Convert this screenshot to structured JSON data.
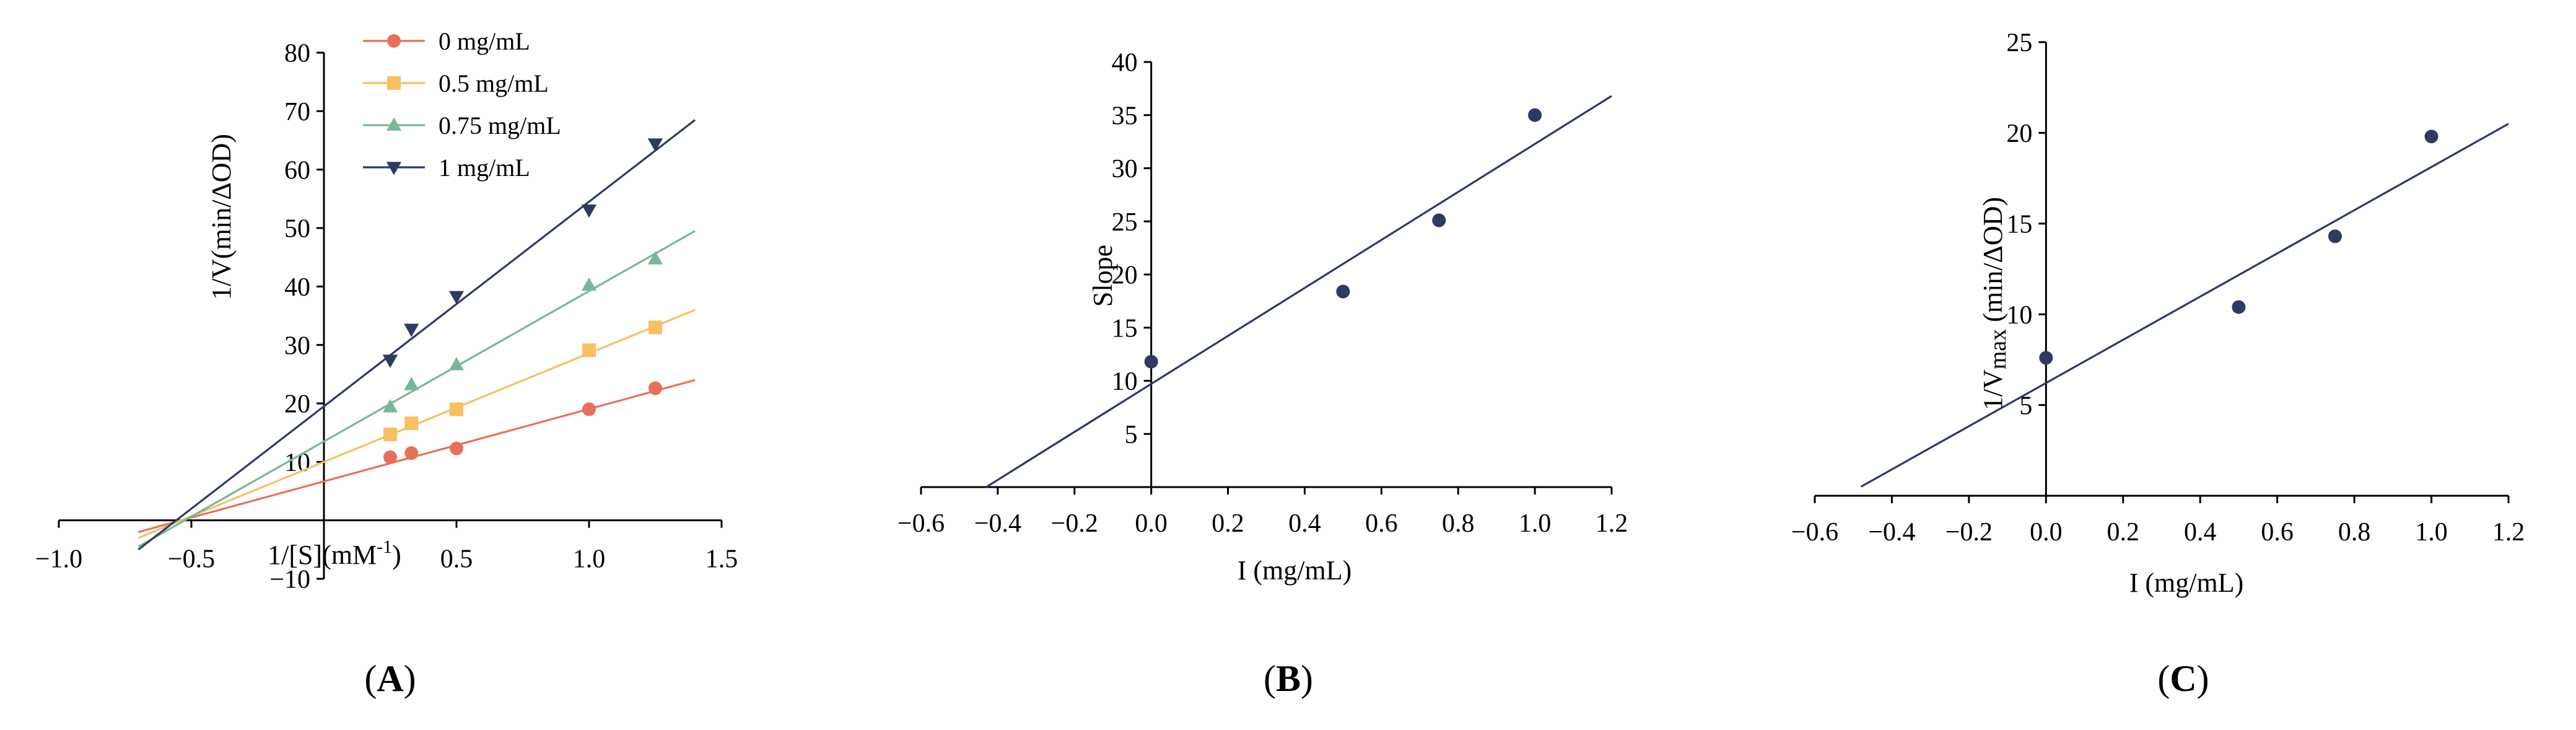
{
  "charts": [
    {
      "panel_label_pre": "(",
      "panel_letter": "A",
      "panel_label_post": ")",
      "chart_data": {
        "type": "line",
        "title": "",
        "xlabel_base": "1/[S](mM",
        "xlabel_sup": "-1",
        "xlabel_end": ")",
        "ylabel": "1/V(min/ΔOD)",
        "xlim": [
          -1.0,
          1.5
        ],
        "ylim": [
          -10,
          80
        ],
        "xticks": [
          -1.0,
          -0.5,
          0.5,
          1.0,
          1.5
        ],
        "xtick_labels": [
          "−1.0",
          "−0.5",
          "0.5",
          "1.0",
          "1.5"
        ],
        "yticks": [
          -10,
          10,
          20,
          30,
          40,
          50,
          60,
          70,
          80
        ],
        "ytick_labels": [
          "−10",
          "10",
          "20",
          "30",
          "40",
          "50",
          "60",
          "70",
          "80"
        ],
        "grid": false,
        "legend_position": "top-center",
        "series": [
          {
            "name": "0 mg/mL",
            "color": "#E8705A",
            "marker": "circle",
            "x": [
              0.25,
              0.33,
              0.5,
              1.0,
              1.25
            ],
            "y": [
              10.8,
              11.5,
              12.3,
              19.0,
              22.6
            ],
            "fit": {
              "x1": -0.7,
              "y1": -2.0,
              "x2": 1.4,
              "y2": 24.0
            }
          },
          {
            "name": "0.5 mg/mL",
            "color": "#F6C063",
            "marker": "square",
            "x": [
              0.25,
              0.33,
              0.5,
              1.0,
              1.25
            ],
            "y": [
              14.7,
              16.6,
              19.0,
              29.1,
              33.0
            ],
            "fit": {
              "x1": -0.7,
              "y1": -3.0,
              "x2": 1.4,
              "y2": 36.0
            }
          },
          {
            "name": "0.75 mg/mL",
            "color": "#76B89A",
            "marker": "triangle-up",
            "x": [
              0.25,
              0.33,
              0.5,
              1.0,
              1.25
            ],
            "y": [
              19.4,
              23.2,
              26.6,
              40.2,
              44.7
            ],
            "fit": {
              "x1": -0.7,
              "y1": -4.5,
              "x2": 1.4,
              "y2": 49.5
            }
          },
          {
            "name": "1 mg/mL",
            "color": "#2F3A62",
            "marker": "triangle-down",
            "x": [
              0.25,
              0.33,
              0.5,
              1.0,
              1.25
            ],
            "y": [
              27.4,
              32.7,
              38.3,
              53.1,
              64.4
            ],
            "fit": {
              "x1": -0.7,
              "y1": -5.0,
              "x2": 1.4,
              "y2": 68.5
            }
          }
        ]
      }
    },
    {
      "panel_label_pre": "(",
      "panel_letter": "B",
      "panel_label_post": ")",
      "chart_data": {
        "type": "scatter",
        "title": "",
        "xlabel": "I (mg/mL)",
        "ylabel": "Slope",
        "xlim": [
          -0.6,
          1.2
        ],
        "ylim": [
          0,
          40
        ],
        "xticks": [
          -0.6,
          -0.4,
          -0.2,
          0.0,
          0.2,
          0.4,
          0.6,
          0.8,
          1.0,
          1.2
        ],
        "xtick_labels": [
          "−0.6",
          "−0.4",
          "−0.2",
          "0.0",
          "0.2",
          "0.4",
          "0.6",
          "0.8",
          "1.0",
          "1.2"
        ],
        "yticks": [
          5,
          10,
          15,
          20,
          25,
          30,
          35,
          40
        ],
        "ytick_labels": [
          "5",
          "10",
          "15",
          "20",
          "25",
          "30",
          "35",
          "40"
        ],
        "grid": false,
        "series": [
          {
            "color": "#2F3A62",
            "marker": "circle",
            "x": [
              0.0,
              0.5,
              0.75,
              1.0
            ],
            "y": [
              11.8,
              18.4,
              25.1,
              35.0
            ],
            "fit": {
              "x1": -0.43,
              "y1": 0.0,
              "x2": 1.2,
              "y2": 36.8
            }
          }
        ]
      }
    },
    {
      "panel_label_pre": "(",
      "panel_letter": "C",
      "panel_label_post": ")",
      "chart_data": {
        "type": "scatter",
        "title": "",
        "xlabel": "I (mg/mL)",
        "ylabel_base": "1/V",
        "ylabel_sub": "max",
        "ylabel_end": " (min/ΔOD)",
        "xlim": [
          -0.6,
          1.2
        ],
        "ylim": [
          0,
          25
        ],
        "xticks": [
          -0.6,
          -0.4,
          -0.2,
          0.0,
          0.2,
          0.4,
          0.6,
          0.8,
          1.0,
          1.2
        ],
        "xtick_labels": [
          "−0.6",
          "−0.4",
          "−0.2",
          "0.0",
          "0.2",
          "0.4",
          "0.6",
          "0.8",
          "1.0",
          "1.2"
        ],
        "yticks": [
          5,
          10,
          15,
          20,
          25
        ],
        "ytick_labels": [
          "5",
          "10",
          "15",
          "20",
          "25"
        ],
        "grid": false,
        "series": [
          {
            "color": "#2F3A62",
            "marker": "circle",
            "x": [
              0.0,
              0.5,
              0.75,
              1.0
            ],
            "y": [
              7.6,
              10.4,
              14.3,
              19.8
            ],
            "fit": {
              "x1": -0.48,
              "y1": 0.5,
              "x2": 1.2,
              "y2": 20.5
            }
          }
        ]
      }
    }
  ]
}
